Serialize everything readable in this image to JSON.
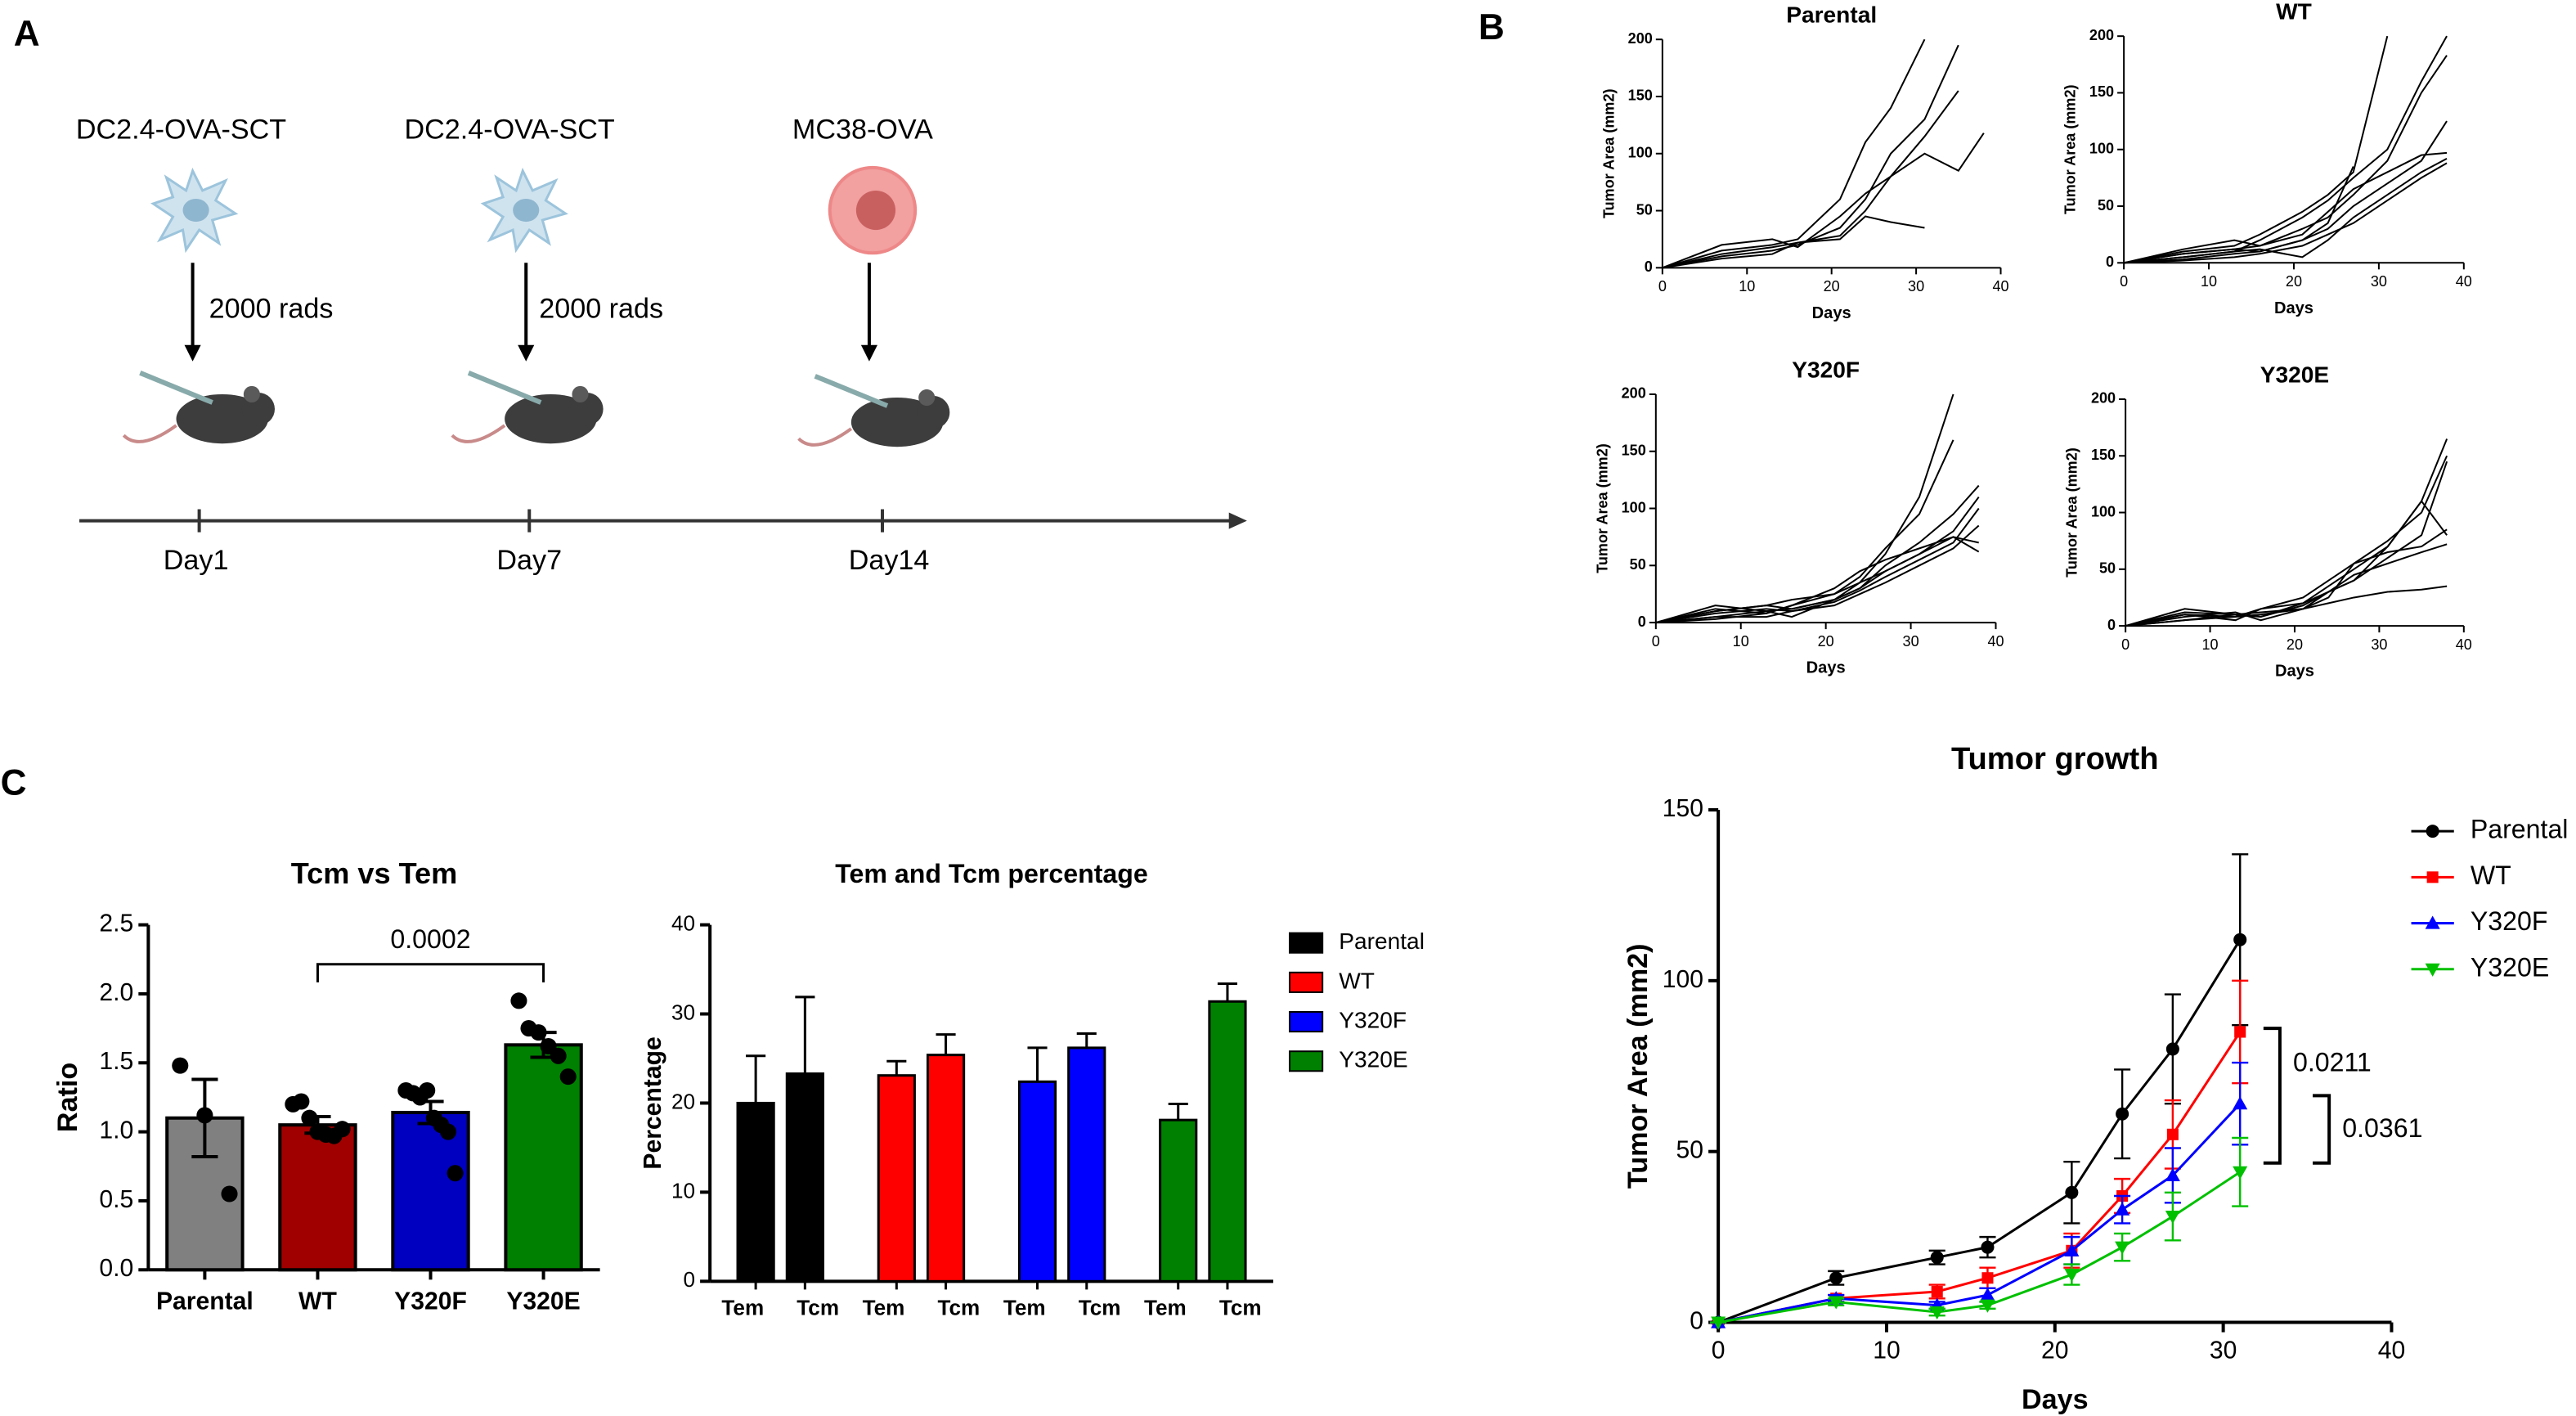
{
  "panel_labels": [
    "A",
    "B",
    "C"
  ],
  "diagram": {
    "steps": [
      {
        "cell": "DC2.4-OVA-SCT",
        "dose": "2000 rads",
        "day": "Day1"
      },
      {
        "cell": "DC2.4-OVA-SCT",
        "dose": "2000 rads",
        "day": "Day7"
      },
      {
        "cell": "MC38-OVA",
        "day": "Day14"
      }
    ]
  },
  "chart_data": [
    {
      "type": "line",
      "title": "Parental",
      "x_label": "Days",
      "y_label": "Tumor Area (mm2)",
      "x": [
        0,
        7,
        13,
        16,
        21,
        24,
        27,
        31,
        35,
        38
      ],
      "series": [
        {
          "color": "#000000",
          "values": [
            0,
            15,
            20,
            25,
            60,
            110,
            140,
            200,
            null,
            null
          ]
        },
        {
          "color": "#000000",
          "values": [
            0,
            10,
            15,
            20,
            35,
            60,
            100,
            130,
            195,
            null
          ]
        },
        {
          "color": "#000000",
          "values": [
            0,
            12,
            18,
            22,
            28,
            50,
            80,
            115,
            155,
            null
          ]
        },
        {
          "color": "#000000",
          "values": [
            0,
            20,
            25,
            18,
            45,
            65,
            80,
            100,
            85,
            118
          ]
        },
        {
          "color": "#000000",
          "values": [
            0,
            8,
            12,
            22,
            25,
            45,
            40,
            35,
            null,
            null
          ]
        }
      ],
      "xlim": [
        0,
        40
      ],
      "xticks": [
        0,
        10,
        20,
        30,
        40
      ],
      "ylim": [
        0,
        200
      ],
      "yticks": [
        0,
        50,
        100,
        150,
        200
      ]
    },
    {
      "type": "line",
      "title": "WT",
      "x_label": "Days",
      "y_label": "Tumor Area (mm2)",
      "x": [
        0,
        7,
        13,
        16,
        21,
        24,
        27,
        31,
        35,
        38
      ],
      "series": [
        {
          "color": "#000000",
          "values": [
            0,
            10,
            15,
            25,
            45,
            60,
            80,
            200,
            null,
            null
          ]
        },
        {
          "color": "#000000",
          "values": [
            0,
            5,
            10,
            20,
            40,
            55,
            75,
            100,
            160,
            200
          ]
        },
        {
          "color": "#000000",
          "values": [
            0,
            8,
            12,
            15,
            30,
            40,
            60,
            90,
            150,
            183
          ]
        },
        {
          "color": "#000000",
          "values": [
            0,
            3,
            8,
            10,
            20,
            30,
            50,
            70,
            90,
            125
          ]
        },
        {
          "color": "#000000",
          "values": [
            0,
            12,
            20,
            15,
            25,
            45,
            65,
            80,
            95,
            97
          ]
        },
        {
          "color": "#000000",
          "values": [
            0,
            5,
            10,
            12,
            5,
            20,
            40,
            60,
            80,
            92
          ]
        },
        {
          "color": "#000000",
          "values": [
            0,
            2,
            5,
            8,
            15,
            25,
            35,
            55,
            75,
            88
          ]
        },
        {
          "color": "#000000",
          "values": [
            0,
            8,
            12,
            10,
            20,
            35,
            85,
            null,
            null,
            null
          ]
        }
      ],
      "xlim": [
        0,
        40
      ],
      "xticks": [
        0,
        10,
        20,
        30,
        40
      ],
      "ylim": [
        0,
        200
      ],
      "yticks": [
        0,
        50,
        100,
        150,
        200
      ]
    },
    {
      "type": "line",
      "title": "Y320F",
      "x_label": "Days",
      "y_label": "Tumor Area (mm2)",
      "x": [
        0,
        7,
        13,
        16,
        21,
        24,
        27,
        31,
        35,
        38
      ],
      "series": [
        {
          "color": "#000000",
          "values": [
            0,
            15,
            10,
            12,
            20,
            35,
            60,
            110,
            200,
            null
          ]
        },
        {
          "color": "#000000",
          "values": [
            0,
            10,
            15,
            20,
            25,
            40,
            65,
            95,
            160,
            null
          ]
        },
        {
          "color": "#000000",
          "values": [
            0,
            5,
            10,
            5,
            20,
            30,
            50,
            70,
            95,
            120
          ]
        },
        {
          "color": "#000000",
          "values": [
            0,
            12,
            8,
            15,
            25,
            35,
            45,
            60,
            80,
            110
          ]
        },
        {
          "color": "#000000",
          "values": [
            0,
            8,
            12,
            10,
            18,
            28,
            40,
            55,
            70,
            100
          ]
        },
        {
          "color": "#000000",
          "values": [
            0,
            5,
            5,
            10,
            15,
            25,
            35,
            50,
            65,
            85
          ]
        },
        {
          "color": "#000000",
          "values": [
            0,
            10,
            15,
            12,
            20,
            30,
            45,
            60,
            75,
            62
          ]
        },
        {
          "color": "#000000",
          "values": [
            0,
            3,
            8,
            15,
            30,
            45,
            55,
            65,
            75,
            70
          ]
        }
      ],
      "xlim": [
        0,
        40
      ],
      "xticks": [
        0,
        10,
        20,
        30,
        40
      ],
      "ylim": [
        0,
        200
      ],
      "yticks": [
        0,
        50,
        100,
        150,
        200
      ]
    },
    {
      "type": "line",
      "title": "Y320E",
      "x_label": "Days",
      "y_label": "Tumor Area (mm2)",
      "x": [
        0,
        7,
        13,
        16,
        21,
        24,
        27,
        31,
        35,
        38
      ],
      "series": [
        {
          "color": "#000000",
          "values": [
            0,
            10,
            5,
            15,
            20,
            30,
            40,
            70,
            110,
            165
          ]
        },
        {
          "color": "#000000",
          "values": [
            0,
            15,
            10,
            12,
            15,
            25,
            55,
            75,
            100,
            150
          ]
        },
        {
          "color": "#000000",
          "values": [
            0,
            8,
            12,
            5,
            15,
            30,
            40,
            60,
            80,
            145
          ]
        },
        {
          "color": "#000000",
          "values": [
            0,
            5,
            10,
            8,
            20,
            35,
            50,
            70,
            110,
            80
          ]
        },
        {
          "color": "#000000",
          "values": [
            0,
            10,
            8,
            15,
            25,
            40,
            55,
            65,
            70,
            85
          ]
        },
        {
          "color": "#000000",
          "values": [
            0,
            5,
            8,
            10,
            15,
            20,
            25,
            30,
            32,
            35
          ]
        },
        {
          "color": "#000000",
          "values": [
            0,
            12,
            10,
            8,
            18,
            30,
            45,
            55,
            65,
            72
          ]
        }
      ],
      "xlim": [
        0,
        40
      ],
      "xticks": [
        0,
        10,
        20,
        30,
        40
      ],
      "ylim": [
        0,
        200
      ],
      "yticks": [
        0,
        50,
        100,
        150,
        200
      ]
    },
    {
      "type": "bar",
      "title": "Tcm vs Tem",
      "y_label": "Ratio",
      "categories": [
        "Parental",
        "WT",
        "Y320F",
        "Y320E"
      ],
      "values": [
        1.1,
        1.05,
        1.14,
        1.63
      ],
      "errors": [
        0.28,
        0.06,
        0.08,
        0.09
      ],
      "colors": [
        "#808080",
        "#a00000",
        "#0000c0",
        "#008000"
      ],
      "points": [
        [
          1.48,
          1.12,
          0.55
        ],
        [
          1.2,
          1.22,
          1.1,
          1.0,
          0.98,
          0.97,
          1.02
        ],
        [
          1.3,
          1.28,
          1.25,
          1.3,
          1.1,
          1.05,
          1.0,
          0.7
        ],
        [
          1.95,
          1.75,
          1.72,
          1.62,
          1.55,
          1.4
        ]
      ],
      "annotation": "0.0002",
      "ylim": [
        0,
        2.5
      ],
      "yticks": [
        {
          "value": 0,
          "label": "0.0"
        },
        0.5,
        {
          "value": 1,
          "label": "1.0"
        },
        1.5,
        {
          "value": 2,
          "label": "2.0"
        },
        2.5
      ]
    },
    {
      "type": "grouped_bar",
      "title": "Tem and Tcm percentage",
      "y_label": "Percentage",
      "categories": [
        "Tem",
        "Tcm"
      ],
      "series": [
        {
          "name": "Parental",
          "color": "#000000",
          "values": [
            20,
            23.3
          ],
          "errors": [
            5.3,
            8.6
          ]
        },
        {
          "name": "WT",
          "color": "#ff0000",
          "values": [
            23.1,
            25.4
          ],
          "errors": [
            1.6,
            2.3
          ]
        },
        {
          "name": "Y320F",
          "color": "#0000ff",
          "values": [
            22.4,
            26.2
          ],
          "errors": [
            3.8,
            1.6
          ]
        },
        {
          "name": "Y320E",
          "color": "#008000",
          "values": [
            18.1,
            31.4
          ],
          "errors": [
            1.8,
            2
          ]
        }
      ],
      "ylim": [
        0,
        40
      ],
      "yticks": [
        0,
        10,
        20,
        30,
        40
      ]
    },
    {
      "type": "line",
      "title": "Tumor growth",
      "x_label": "Days",
      "y_label": "Tumor Area (mm2)",
      "x": [
        0,
        7,
        13,
        16,
        21,
        24,
        27,
        31
      ],
      "series": [
        {
          "name": "Parental",
          "color": "#000000",
          "marker": "circle",
          "values": [
            0,
            13,
            19,
            22,
            38,
            61,
            80,
            112
          ],
          "errors": [
            0,
            2,
            2,
            3,
            9,
            13,
            16,
            25
          ]
        },
        {
          "name": "WT",
          "color": "#ff0000",
          "marker": "square",
          "values": [
            0,
            7,
            9,
            13,
            21,
            37,
            55,
            85
          ],
          "errors": [
            0,
            1,
            2,
            3,
            5,
            5,
            10,
            15
          ]
        },
        {
          "name": "Y320F",
          "color": "#0000ff",
          "marker": "triangle",
          "values": [
            0,
            7,
            5,
            8,
            21,
            33,
            43,
            64
          ],
          "errors": [
            0,
            1,
            1,
            2,
            4,
            4,
            8,
            12
          ]
        },
        {
          "name": "Y320E",
          "color": "#00c000",
          "marker": "triangle-down",
          "values": [
            0,
            6,
            3,
            5,
            14,
            22,
            31,
            44
          ],
          "errors": [
            0,
            1,
            1,
            1,
            3,
            4,
            7,
            10
          ]
        }
      ],
      "annotations": [
        "0.0211",
        "0.0361"
      ],
      "xlim": [
        0,
        40
      ],
      "xticks": [
        0,
        10,
        20,
        30,
        40
      ],
      "ylim": [
        0,
        150
      ],
      "yticks": [
        0,
        50,
        100,
        150
      ]
    }
  ]
}
